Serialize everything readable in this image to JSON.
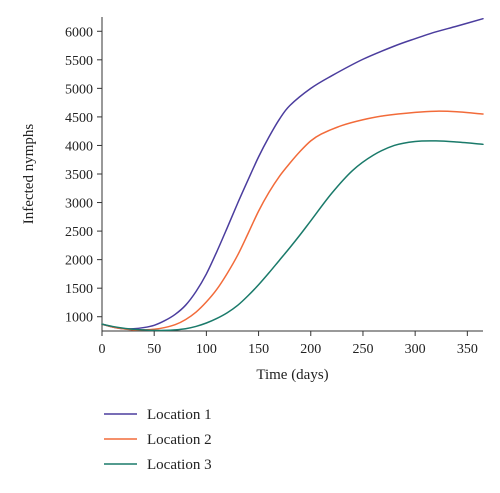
{
  "chart_data": {
    "type": "line",
    "title": "",
    "xlabel": "Time (days)",
    "ylabel": "Infected nymphs",
    "xlim": [
      0,
      365
    ],
    "ylim": [
      750,
      6250
    ],
    "xticks": [
      0,
      50,
      100,
      150,
      200,
      250,
      300,
      350
    ],
    "yticks": [
      1000,
      1500,
      2000,
      2500,
      3000,
      3500,
      4000,
      4500,
      5000,
      5500,
      6000
    ],
    "grid": false,
    "legend_position": "bottom-left, below plot",
    "series": [
      {
        "name": "Location 1",
        "color": "#4b3d9e",
        "x": [
          0,
          10,
          20,
          30,
          40,
          50,
          60,
          70,
          80,
          90,
          100,
          110,
          120,
          130,
          140,
          150,
          160,
          170,
          180,
          200,
          220,
          250,
          280,
          300,
          320,
          340,
          365
        ],
        "y": [
          870,
          820,
          790,
          790,
          810,
          850,
          930,
          1040,
          1200,
          1440,
          1750,
          2140,
          2560,
          2990,
          3400,
          3800,
          4150,
          4460,
          4700,
          5000,
          5220,
          5510,
          5740,
          5870,
          5990,
          6090,
          6220
        ]
      },
      {
        "name": "Location 2",
        "color": "#f26b3a",
        "x": [
          0,
          10,
          20,
          30,
          40,
          50,
          60,
          70,
          80,
          90,
          100,
          110,
          120,
          130,
          140,
          150,
          160,
          170,
          180,
          190,
          200,
          210,
          230,
          250,
          270,
          300,
          320,
          340,
          365
        ],
        "y": [
          870,
          820,
          790,
          770,
          770,
          780,
          810,
          860,
          950,
          1080,
          1260,
          1480,
          1760,
          2080,
          2460,
          2850,
          3180,
          3460,
          3690,
          3900,
          4080,
          4200,
          4350,
          4450,
          4520,
          4580,
          4600,
          4590,
          4550
        ]
      },
      {
        "name": "Location 3",
        "color": "#1a7a6a",
        "x": [
          0,
          10,
          20,
          30,
          40,
          50,
          60,
          70,
          80,
          90,
          100,
          110,
          120,
          130,
          140,
          150,
          160,
          170,
          180,
          190,
          200,
          220,
          240,
          260,
          280,
          300,
          320,
          340,
          365
        ],
        "y": [
          870,
          830,
          800,
          780,
          770,
          760,
          760,
          770,
          790,
          830,
          890,
          970,
          1070,
          1200,
          1370,
          1560,
          1770,
          1990,
          2210,
          2440,
          2680,
          3160,
          3560,
          3830,
          4000,
          4070,
          4080,
          4060,
          4020
        ]
      }
    ]
  }
}
